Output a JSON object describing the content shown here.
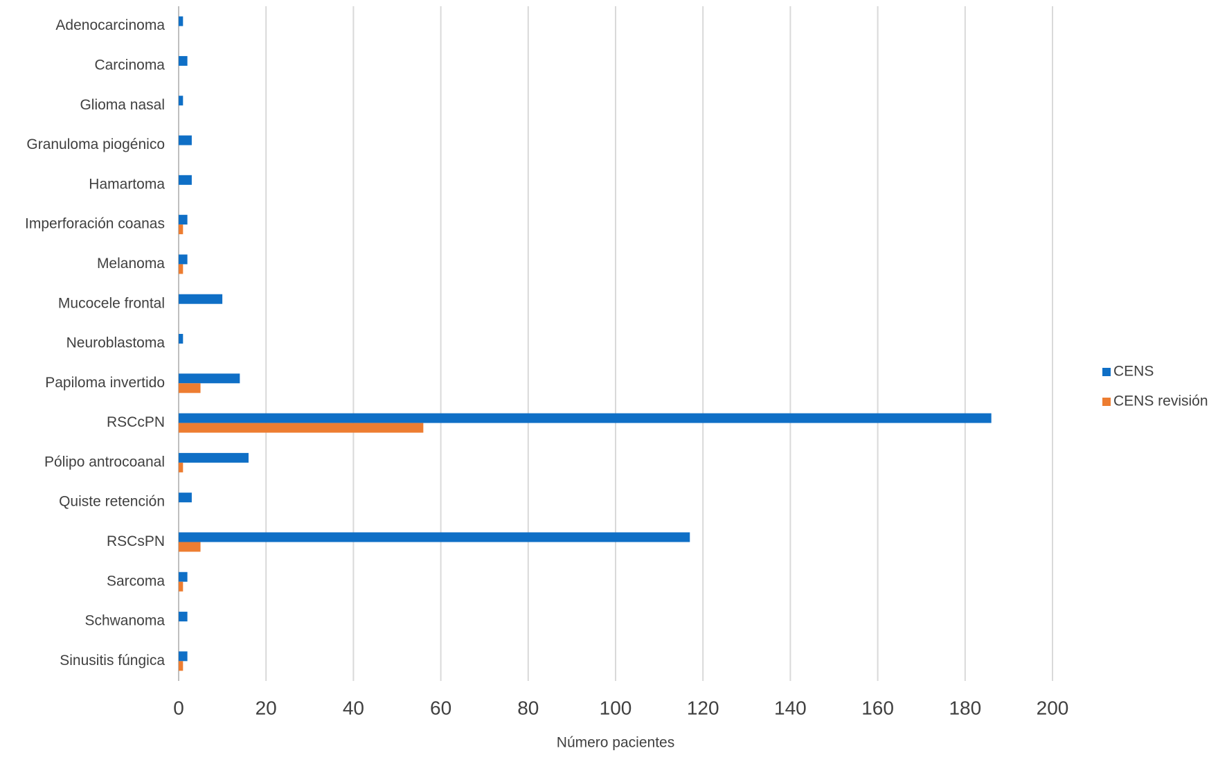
{
  "chart_data": {
    "type": "bar",
    "orientation": "horizontal",
    "categories": [
      "Adenocarcinoma",
      "Carcinoma",
      "Glioma nasal",
      "Granuloma piogénico",
      "Hamartoma",
      "Imperforación coanas",
      "Melanoma",
      "Mucocele frontal",
      "Neuroblastoma",
      "Papiloma invertido",
      "RSCcPN",
      "Pólipo antrocoanal",
      "Quiste retención",
      "RSCsPN",
      "Sarcoma",
      "Schwanoma",
      "Sinusitis fúngica"
    ],
    "series": [
      {
        "name": "CENS",
        "color": "#0f6fc6",
        "values": [
          1,
          2,
          1,
          3,
          3,
          2,
          2,
          10,
          1,
          14,
          186,
          16,
          3,
          117,
          2,
          2,
          2
        ]
      },
      {
        "name": "CENS revisión",
        "color": "#ed7d31",
        "values": [
          0,
          0,
          0,
          0,
          0,
          1,
          1,
          0,
          0,
          5,
          56,
          1,
          0,
          5,
          1,
          0,
          1
        ]
      }
    ],
    "xlabel": "Número pacientes",
    "xlim": [
      0,
      200
    ],
    "xticks": [
      0,
      20,
      40,
      60,
      80,
      100,
      120,
      140,
      160,
      180,
      200
    ],
    "grid": true,
    "legend": "right"
  }
}
